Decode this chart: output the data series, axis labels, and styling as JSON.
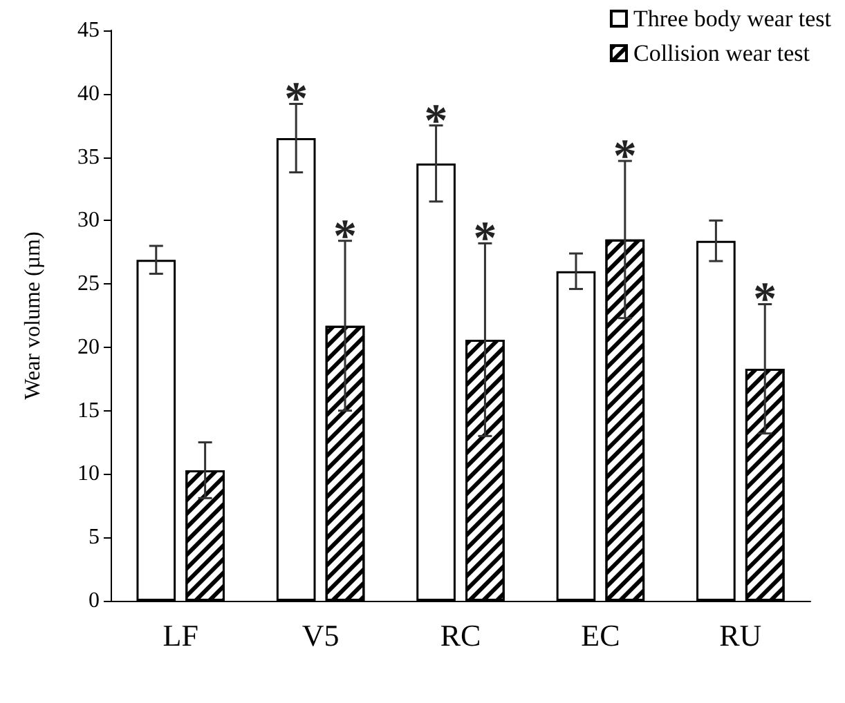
{
  "chart_data": {
    "type": "bar",
    "ylabel": "Wear volume (µm)",
    "categories": [
      "LF",
      "V5",
      "RC",
      "EC",
      "RU"
    ],
    "series": [
      {
        "name": "Three body wear test",
        "color": "#ffffff",
        "values": [
          26.9,
          36.5,
          34.5,
          26.0,
          28.4
        ],
        "errors": [
          1.1,
          2.7,
          3.0,
          1.4,
          1.6
        ],
        "value_labels": [
          null,
          "*",
          "*",
          null,
          null
        ]
      },
      {
        "name": "Collision wear test",
        "color": "#000000",
        "values": [
          10.3,
          21.7,
          20.6,
          28.5,
          18.3
        ],
        "errors": [
          2.2,
          6.7,
          7.6,
          6.2,
          5.1
        ],
        "value_labels": [
          null,
          "*",
          "*",
          "*",
          "*"
        ]
      }
    ],
    "ylim": [
      0,
      45
    ],
    "yticks": [
      0,
      5,
      10,
      15,
      20,
      25,
      30,
      35,
      40,
      45
    ],
    "grid": false,
    "legend": "top right"
  }
}
